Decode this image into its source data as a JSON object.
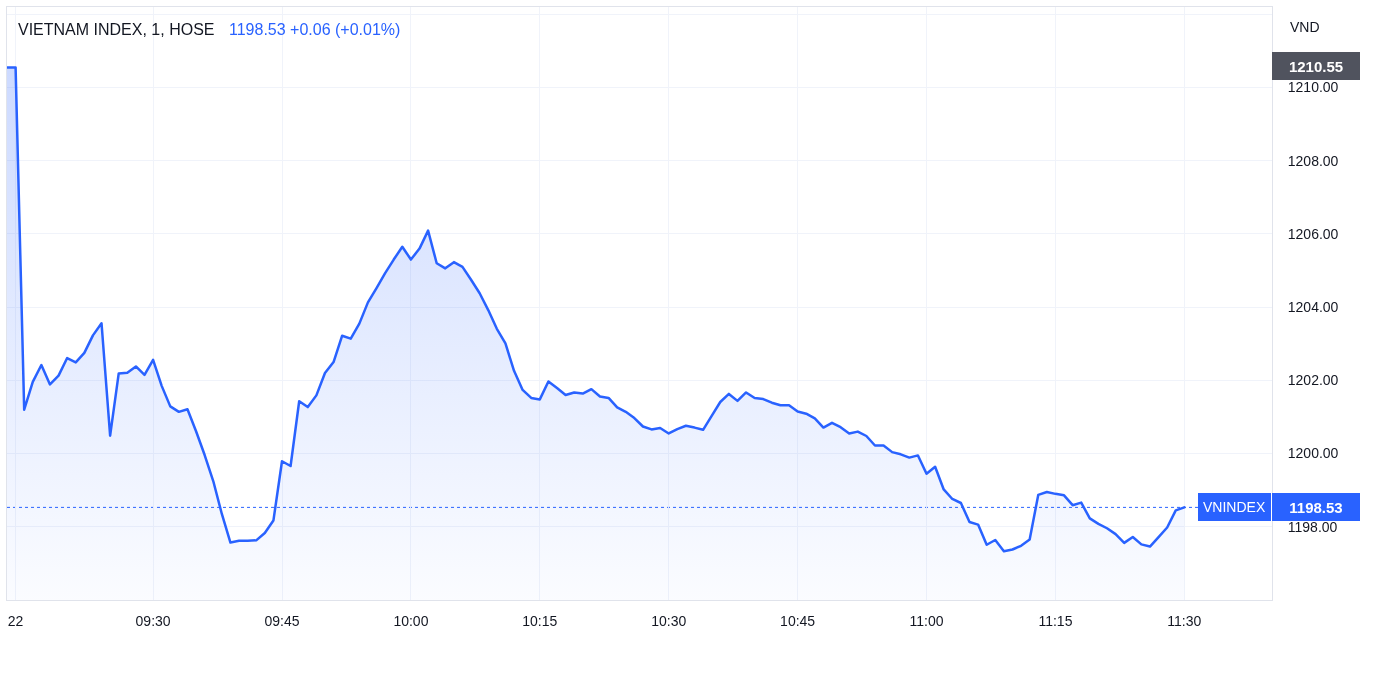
{
  "chart_data": {
    "type": "area",
    "title": "VIETNAM INDEX, 1, HOSE",
    "subtitle": "1198.53 +0.06 (+0.01%)",
    "ylabel": "VND",
    "categories": [
      null,
      "22",
      null,
      null,
      null,
      null,
      null,
      null,
      null,
      null,
      null,
      null,
      null,
      null,
      null,
      null,
      null,
      "09:30",
      null,
      null,
      null,
      null,
      null,
      null,
      null,
      null,
      null,
      null,
      null,
      null,
      null,
      null,
      "09:45",
      null,
      null,
      null,
      null,
      null,
      null,
      null,
      null,
      null,
      null,
      null,
      null,
      null,
      null,
      "10:00",
      null,
      null,
      null,
      null,
      null,
      null,
      null,
      null,
      null,
      null,
      null,
      null,
      null,
      null,
      "10:15",
      null,
      null,
      null,
      null,
      null,
      null,
      null,
      null,
      null,
      null,
      null,
      null,
      null,
      null,
      "10:30",
      null,
      null,
      null,
      null,
      null,
      null,
      null,
      null,
      null,
      null,
      null,
      null,
      null,
      null,
      "10:45",
      null,
      null,
      null,
      null,
      null,
      null,
      null,
      null,
      null,
      null,
      null,
      null,
      null,
      null,
      "11:00",
      null,
      null,
      null,
      null,
      null,
      null,
      null,
      null,
      null,
      null,
      null,
      null,
      null,
      null,
      "11:15",
      null,
      null,
      null,
      null,
      null,
      null,
      null,
      null,
      null,
      null,
      null,
      null,
      null,
      null,
      "11:30"
    ],
    "series": [
      {
        "name": "VNINDEX",
        "color": "#2962ff",
        "values": [
          1210.55,
          1210.55,
          1201.2,
          1201.96,
          1202.42,
          1201.89,
          1202.13,
          1202.61,
          1202.49,
          1202.75,
          1203.23,
          1203.56,
          1200.49,
          1202.19,
          1202.21,
          1202.38,
          1202.15,
          1202.56,
          1201.85,
          1201.29,
          1201.14,
          1201.21,
          1200.61,
          1199.96,
          1199.25,
          1198.35,
          1197.57,
          1197.62,
          1197.62,
          1197.63,
          1197.83,
          1198.17,
          1199.79,
          1199.66,
          1201.43,
          1201.27,
          1201.59,
          1202.2,
          1202.5,
          1203.22,
          1203.14,
          1203.55,
          1204.13,
          1204.52,
          1204.93,
          1205.3,
          1205.65,
          1205.3,
          1205.6,
          1206.09,
          1205.2,
          1205.06,
          1205.23,
          1205.1,
          1204.75,
          1204.38,
          1203.92,
          1203.41,
          1203.01,
          1202.26,
          1201.74,
          1201.52,
          1201.48,
          1201.97,
          1201.79,
          1201.6,
          1201.67,
          1201.64,
          1201.76,
          1201.56,
          1201.52,
          1201.26,
          1201.14,
          1200.97,
          1200.74,
          1200.66,
          1200.7,
          1200.55,
          1200.67,
          1200.76,
          1200.71,
          1200.65,
          1201.03,
          1201.41,
          1201.63,
          1201.44,
          1201.67,
          1201.52,
          1201.49,
          1201.39,
          1201.32,
          1201.32,
          1201.15,
          1201.09,
          1200.96,
          1200.71,
          1200.84,
          1200.72,
          1200.55,
          1200.6,
          1200.48,
          1200.22,
          1200.22,
          1200.04,
          1199.98,
          1199.89,
          1199.95,
          1199.45,
          1199.64,
          1199.02,
          1198.76,
          1198.65,
          1198.13,
          1198.06,
          1197.51,
          1197.64,
          1197.33,
          1197.38,
          1197.48,
          1197.65,
          1198.87,
          1198.95,
          1198.9,
          1198.86,
          1198.59,
          1198.66,
          1198.23,
          1198.08,
          1197.96,
          1197.8,
          1197.56,
          1197.72,
          1197.52,
          1197.46,
          1197.72,
          1197.98,
          1198.45,
          1198.53
        ]
      }
    ],
    "ylim": [
      1196,
      1212.2
    ],
    "yticks": [
      {
        "value": 1198,
        "label": "1198.00"
      },
      {
        "value": 1200,
        "label": "1200.00"
      },
      {
        "value": 1202,
        "label": "1202.00"
      },
      {
        "value": 1204,
        "label": "1204.00"
      },
      {
        "value": 1206,
        "label": "1206.00"
      },
      {
        "value": 1208,
        "label": "1208.00"
      },
      {
        "value": 1210,
        "label": "1210.00"
      },
      {
        "value": 1212,
        "label": null
      }
    ],
    "ref_lines": [
      {
        "axis": "y",
        "value": 1198.53,
        "label": "1198.53",
        "color": "#2962ff",
        "line_style": "dotted"
      }
    ],
    "annotations": [
      "1210.55"
    ],
    "grid": true
  }
}
